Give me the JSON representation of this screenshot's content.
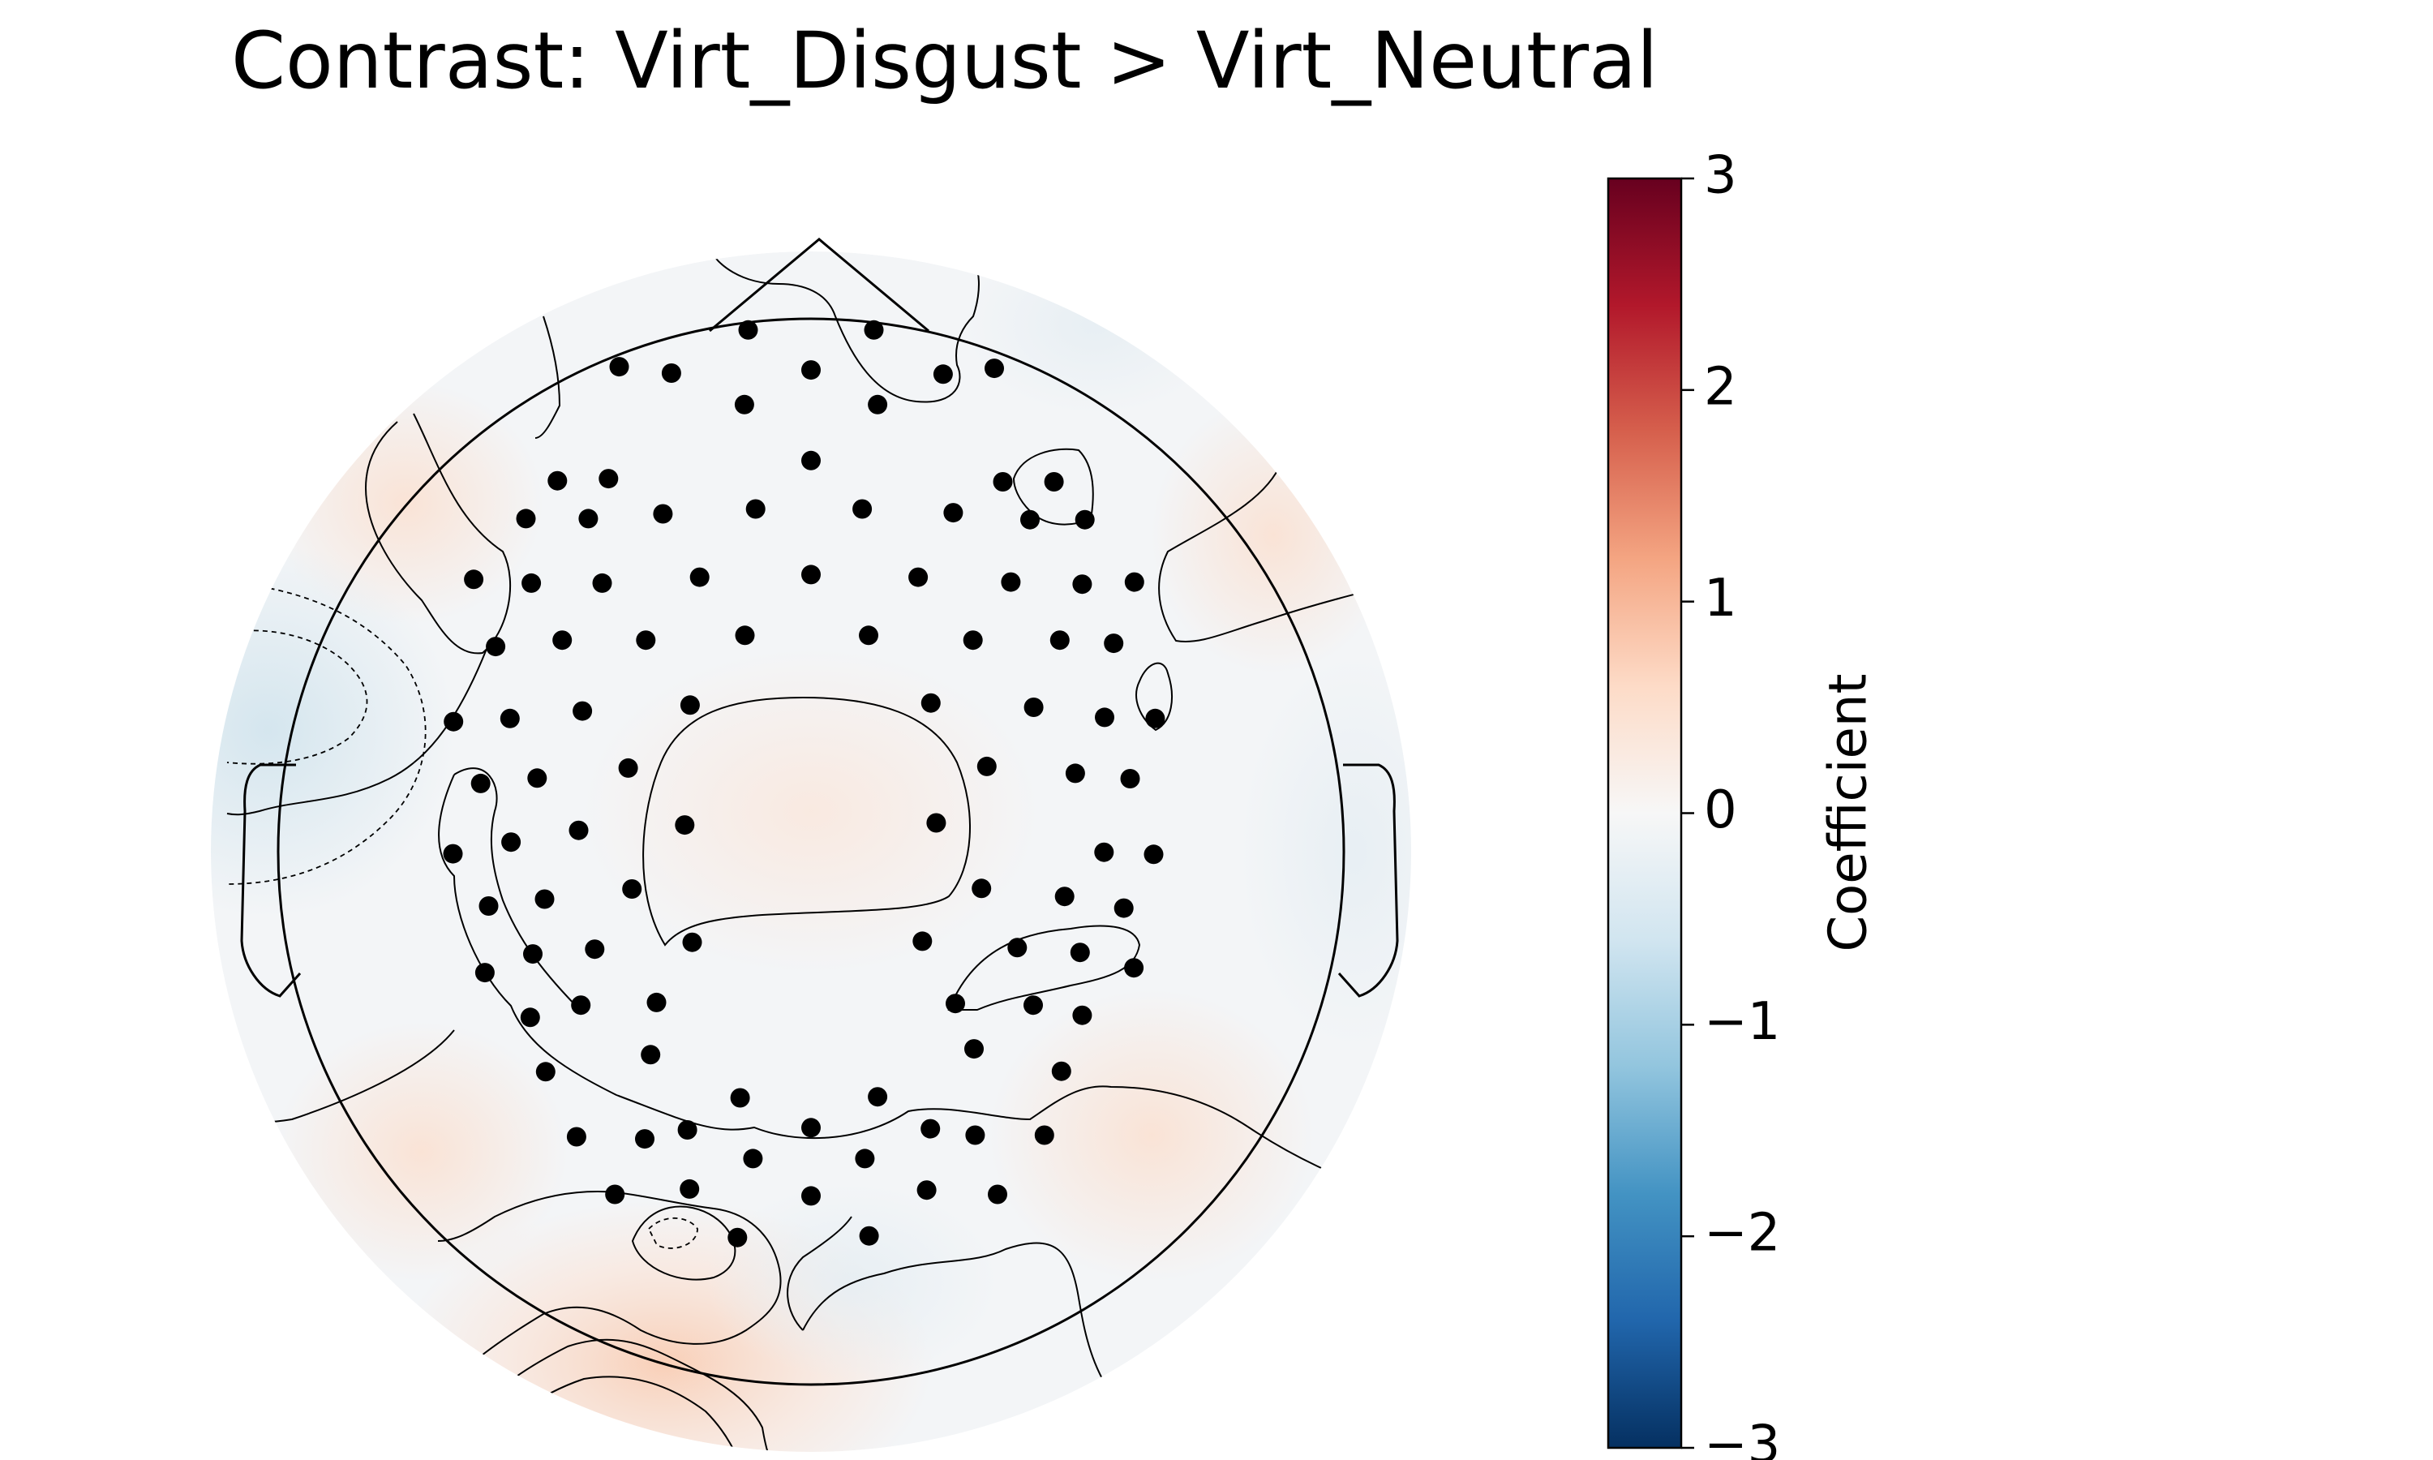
{
  "chart_data": {
    "type": "heatmap",
    "title": "Contrast: Virt_Disgust > Virt_Neutral",
    "colorbar": {
      "label": "Coefficient",
      "vmin": -3,
      "vmax": 3,
      "ticks": [
        3,
        2,
        1,
        0,
        -1,
        -2,
        -3
      ],
      "tick_labels": [
        "3",
        "2",
        "1",
        "0",
        "−1",
        "−2",
        "−3"
      ],
      "colormap": [
        "#67001f",
        "#b2182b",
        "#d6604d",
        "#f4a582",
        "#fddbc7",
        "#f7f7f7",
        "#d1e5f0",
        "#92c5de",
        "#4393c3",
        "#2166ac",
        "#053061"
      ]
    },
    "sensors": [
      [
        -0.118,
        0.979
      ],
      [
        0.118,
        0.979
      ],
      [
        -0.36,
        0.91
      ],
      [
        -0.262,
        0.898
      ],
      [
        0.0,
        0.904
      ],
      [
        0.248,
        0.896
      ],
      [
        0.344,
        0.907
      ],
      [
        -0.125,
        0.839
      ],
      [
        0.125,
        0.839
      ],
      [
        0.0,
        0.734
      ],
      [
        -0.476,
        0.696
      ],
      [
        -0.38,
        0.7
      ],
      [
        0.36,
        0.694
      ],
      [
        0.456,
        0.694
      ],
      [
        -0.535,
        0.625
      ],
      [
        -0.418,
        0.625
      ],
      [
        -0.278,
        0.634
      ],
      [
        -0.104,
        0.643
      ],
      [
        0.096,
        0.643
      ],
      [
        0.267,
        0.636
      ],
      [
        0.411,
        0.623
      ],
      [
        0.514,
        0.623
      ],
      [
        -0.633,
        0.511
      ],
      [
        -0.525,
        0.504
      ],
      [
        -0.392,
        0.504
      ],
      [
        -0.209,
        0.515
      ],
      [
        0.0,
        0.52
      ],
      [
        0.201,
        0.515
      ],
      [
        0.375,
        0.506
      ],
      [
        0.509,
        0.502
      ],
      [
        0.607,
        0.506
      ],
      [
        -0.592,
        0.385
      ],
      [
        -0.467,
        0.397
      ],
      [
        -0.31,
        0.397
      ],
      [
        -0.124,
        0.406
      ],
      [
        0.108,
        0.406
      ],
      [
        0.304,
        0.397
      ],
      [
        0.467,
        0.397
      ],
      [
        0.568,
        0.391
      ],
      [
        -0.671,
        0.244
      ],
      [
        -0.565,
        0.25
      ],
      [
        -0.429,
        0.264
      ],
      [
        -0.227,
        0.275
      ],
      [
        0.225,
        0.279
      ],
      [
        0.418,
        0.271
      ],
      [
        0.551,
        0.252
      ],
      [
        0.646,
        0.25
      ],
      [
        -0.62,
        0.128
      ],
      [
        -0.514,
        0.138
      ],
      [
        -0.343,
        0.157
      ],
      [
        0.33,
        0.16
      ],
      [
        0.496,
        0.147
      ],
      [
        0.599,
        0.137
      ],
      [
        -0.237,
        0.05
      ],
      [
        0.235,
        0.054
      ],
      [
        -0.672,
        -0.004
      ],
      [
        -0.563,
        0.018
      ],
      [
        -0.436,
        0.04
      ],
      [
        0.55,
        -0.001
      ],
      [
        0.643,
        -0.005
      ],
      [
        -0.605,
        -0.102
      ],
      [
        -0.5,
        -0.089
      ],
      [
        -0.336,
        -0.07
      ],
      [
        0.32,
        -0.069
      ],
      [
        0.476,
        -0.084
      ],
      [
        0.587,
        -0.106
      ],
      [
        -0.612,
        -0.227
      ],
      [
        -0.522,
        -0.192
      ],
      [
        -0.406,
        -0.183
      ],
      [
        -0.223,
        -0.17
      ],
      [
        0.209,
        -0.168
      ],
      [
        0.387,
        -0.18
      ],
      [
        0.505,
        -0.189
      ],
      [
        0.606,
        -0.218
      ],
      [
        -0.527,
        -0.311
      ],
      [
        -0.432,
        -0.288
      ],
      [
        -0.29,
        -0.283
      ],
      [
        0.271,
        -0.285
      ],
      [
        0.417,
        -0.288
      ],
      [
        0.509,
        -0.307
      ],
      [
        -0.498,
        -0.413
      ],
      [
        -0.301,
        -0.381
      ],
      [
        0.306,
        -0.37
      ],
      [
        0.47,
        -0.412
      ],
      [
        -0.133,
        -0.462
      ],
      [
        0.125,
        -0.46
      ],
      [
        -0.44,
        -0.535
      ],
      [
        -0.312,
        -0.539
      ],
      [
        -0.232,
        -0.522
      ],
      [
        0.0,
        -0.518
      ],
      [
        0.224,
        -0.52
      ],
      [
        0.308,
        -0.532
      ],
      [
        0.438,
        -0.532
      ],
      [
        -0.109,
        -0.576
      ],
      [
        0.101,
        -0.576
      ],
      [
        -0.368,
        -0.643
      ],
      [
        -0.228,
        -0.633
      ],
      [
        0.0,
        -0.646
      ],
      [
        0.217,
        -0.635
      ],
      [
        0.35,
        -0.643
      ],
      [
        -0.138,
        -0.724
      ],
      [
        0.109,
        -0.721
      ]
    ]
  }
}
